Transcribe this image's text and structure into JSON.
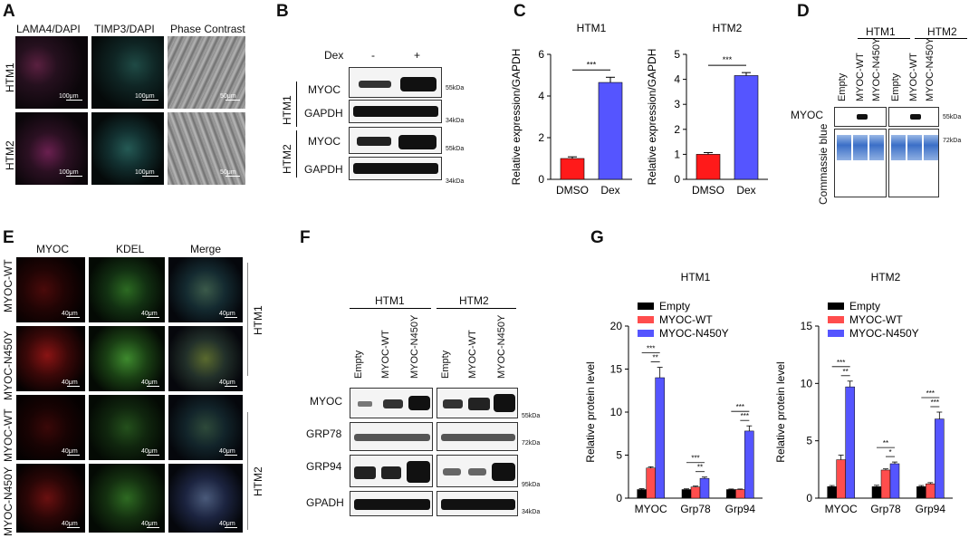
{
  "panels": {
    "A": "A",
    "B": "B",
    "C": "C",
    "D": "D",
    "E": "E",
    "F": "F",
    "G": "G"
  },
  "panelA": {
    "cols": [
      "LAMA4/DAPI",
      "TIMP3/DAPI",
      "Phase Contrast"
    ],
    "col_colors": [
      "#e53935",
      "#43a047",
      "#222222"
    ],
    "rows": [
      "HTM1",
      "HTM2"
    ],
    "scalebars": [
      "100μm",
      "100μm",
      "50μm"
    ]
  },
  "panelB": {
    "dex_label": "Dex",
    "minus": "-",
    "plus": "+",
    "groups": [
      "HTM1",
      "HTM2"
    ],
    "bands": [
      "MYOC",
      "GAPDH",
      "MYOC",
      "GAPDH"
    ],
    "kda": [
      "55kDa",
      "34kDa",
      "55kDa",
      "34kDa"
    ]
  },
  "panelC": {
    "charts": [
      {
        "title": "HTM1",
        "ylabel": "Relative expression/GAPDH",
        "categories": [
          "DMSO",
          "Dex"
        ],
        "sig": "***"
      },
      {
        "title": "HTM2",
        "ylabel": "Relative expression/GAPDH",
        "categories": [
          "DMSO",
          "Dex"
        ],
        "sig": "***"
      }
    ]
  },
  "panelD": {
    "groups": [
      "HTM1",
      "HTM2"
    ],
    "lanes": [
      "Empty",
      "MYOC-WT",
      "MYOC-N450Y"
    ],
    "band": "MYOC",
    "stain": "Commassie blue",
    "kda": [
      "55kDa",
      "72kDa"
    ]
  },
  "panelE": {
    "cols": [
      "MYOC",
      "KDEL",
      "Merge"
    ],
    "col_colors": [
      "#e53935",
      "#43a047",
      "#222222"
    ],
    "rows": [
      "MYOC-WT",
      "MYOC-N450Y",
      "MYOC-WT",
      "MYOC-N450Y"
    ],
    "groups": [
      "HTM1",
      "HTM2"
    ],
    "scalebar": "40μm"
  },
  "panelF": {
    "groups": [
      "HTM1",
      "HTM2"
    ],
    "lanes": [
      "Empty",
      "MYOC-WT",
      "MYOC-N450Y"
    ],
    "bands": [
      "MYOC",
      "GRP78",
      "GRP94",
      "GPADH"
    ],
    "kda": [
      "55kDa",
      "72kDa",
      "95kDa",
      "34kDa"
    ]
  },
  "panelG": {
    "legend": [
      "Empty",
      "MYOC-WT",
      "MYOC-N450Y"
    ],
    "ylabel": "Relative protein level",
    "charts": [
      {
        "title": "HTM1"
      },
      {
        "title": "HTM2"
      }
    ]
  },
  "chart_data": [
    {
      "type": "bar",
      "title": "HTM1",
      "ylabel": "Relative expression/GAPDH",
      "categories": [
        "DMSO",
        "Dex"
      ],
      "values": [
        1.0,
        4.65
      ],
      "errors": [
        0.08,
        0.25
      ],
      "colors": [
        "#ff1a1a",
        "#5555ff"
      ],
      "ylim": [
        0,
        6
      ],
      "yticks": [
        0,
        2,
        4,
        6
      ],
      "significance": "***"
    },
    {
      "type": "bar",
      "title": "HTM2",
      "ylabel": "Relative expression/GAPDH",
      "categories": [
        "DMSO",
        "Dex"
      ],
      "values": [
        1.0,
        4.15
      ],
      "errors": [
        0.07,
        0.12
      ],
      "colors": [
        "#ff1a1a",
        "#5555ff"
      ],
      "ylim": [
        0,
        5
      ],
      "yticks": [
        0,
        1,
        2,
        3,
        4,
        5
      ],
      "significance": "***"
    },
    {
      "type": "bar",
      "title": "HTM1",
      "ylabel": "Relative protein level",
      "categories": [
        "MYOC",
        "Grp78",
        "Grp94"
      ],
      "series": [
        {
          "name": "Empty",
          "values": [
            1.0,
            1.0,
            1.0
          ],
          "errors": [
            0.1,
            0.08,
            0.06
          ]
        },
        {
          "name": "MYOC-WT",
          "values": [
            3.5,
            1.3,
            1.0
          ],
          "errors": [
            0.15,
            0.1,
            0.06
          ]
        },
        {
          "name": "MYOC-N450Y",
          "values": [
            14.0,
            2.3,
            7.8
          ],
          "errors": [
            1.2,
            0.15,
            0.6
          ]
        }
      ],
      "colors": [
        "#000000",
        "#ff4d4d",
        "#5555ff"
      ],
      "ylim": [
        0,
        20
      ],
      "yticks": [
        0,
        5,
        10,
        15,
        20
      ],
      "significance": [
        {
          "category": 0,
          "labels": [
            "***",
            "**"
          ]
        },
        {
          "category": 1,
          "labels": [
            "***",
            "**"
          ]
        },
        {
          "category": 2,
          "labels": [
            "***",
            "***"
          ]
        }
      ]
    },
    {
      "type": "bar",
      "title": "HTM2",
      "ylabel": "Relative protein level",
      "categories": [
        "MYOC",
        "Grp78",
        "Grp94"
      ],
      "series": [
        {
          "name": "Empty",
          "values": [
            1.0,
            1.0,
            1.0
          ],
          "errors": [
            0.1,
            0.12,
            0.1
          ]
        },
        {
          "name": "MYOC-WT",
          "values": [
            3.35,
            2.45,
            1.25
          ],
          "errors": [
            0.4,
            0.1,
            0.1
          ]
        },
        {
          "name": "MYOC-N450Y",
          "values": [
            9.7,
            3.0,
            6.9
          ],
          "errors": [
            0.5,
            0.15,
            0.6
          ]
        }
      ],
      "colors": [
        "#000000",
        "#ff4d4d",
        "#5555ff"
      ],
      "ylim": [
        0,
        15
      ],
      "yticks": [
        0,
        5,
        10,
        15
      ],
      "significance": [
        {
          "category": 0,
          "labels": [
            "***",
            "**"
          ]
        },
        {
          "category": 1,
          "labels": [
            "**",
            "*"
          ]
        },
        {
          "category": 2,
          "labels": [
            "***",
            "***"
          ]
        }
      ]
    }
  ]
}
